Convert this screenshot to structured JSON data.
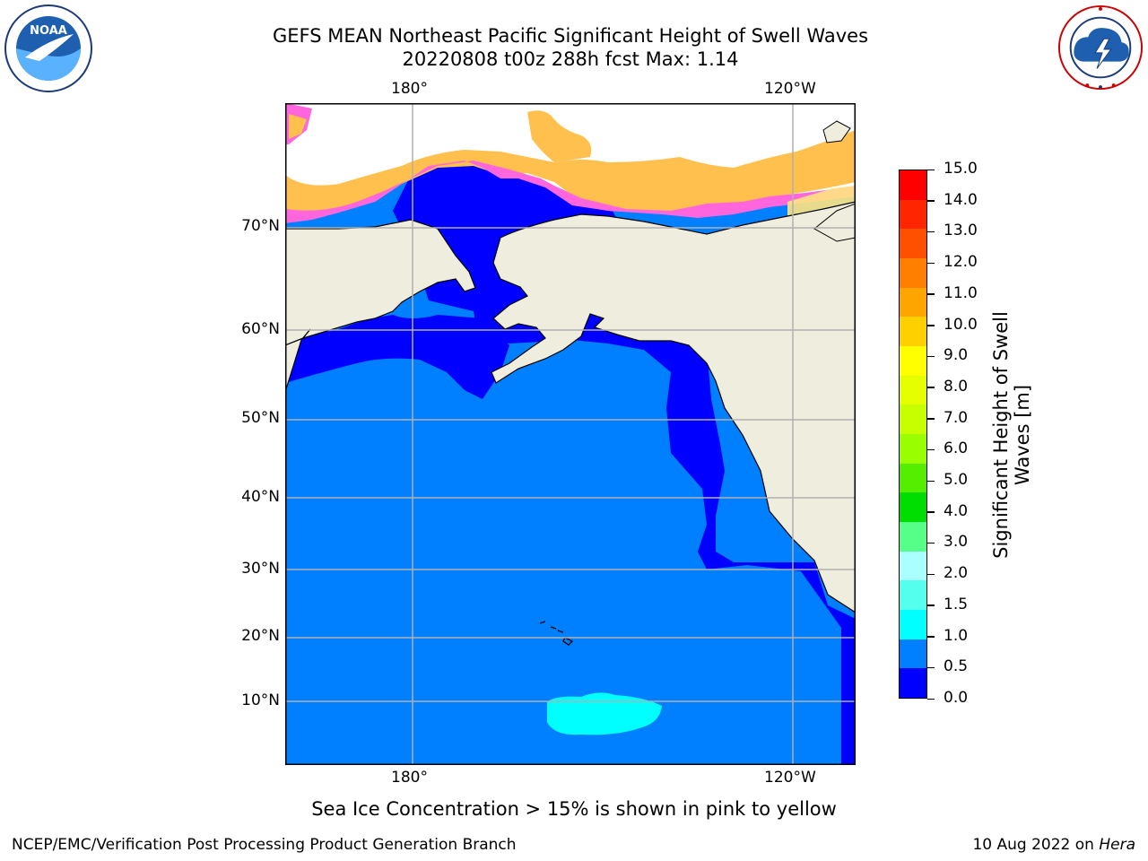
{
  "header": {
    "title_line1": "GEFS MEAN Northeast Pacific Significant Height of Swell Waves",
    "title_line2": "20220808 t00z 288h fcst   Max: 1.14"
  },
  "logos": {
    "left": {
      "name": "noaa-logo",
      "text": "NOAA",
      "ring_text": "NATIONAL OCEANIC AND ATMOSPHERIC ADMINISTRATION · U.S. DEPARTMENT OF COMMERCE"
    },
    "right": {
      "name": "nws-logo",
      "ring_text": "NATIONAL WEATHER SERVICE"
    }
  },
  "map": {
    "lon_labels_top": [
      "180°",
      "120°W"
    ],
    "lon_labels_bottom": [
      "180°",
      "120°W"
    ],
    "lat_labels": [
      "70°N",
      "60°N",
      "50°N",
      "40°N",
      "30°N",
      "20°N",
      "10°N"
    ],
    "colors": {
      "land": "#efedde",
      "ocean_low": "#0000ff",
      "ocean_mid": "#007fff",
      "swell_high": "#00ffff",
      "ice_pink": "#ff66dd",
      "ice_orange": "#ffc04d",
      "ice_yellow": "#ffe680",
      "grid": "#b0b0b0"
    }
  },
  "colorbar": {
    "ticks": [
      "15.0",
      "14.0",
      "13.0",
      "12.0",
      "11.0",
      "10.0",
      "9.0",
      "8.0",
      "7.0",
      "6.0",
      "5.0",
      "4.0",
      "3.0",
      "2.0",
      "1.5",
      "1.0",
      "0.5",
      "0.0"
    ],
    "colors_top_to_bottom": [
      "#ff0000",
      "#ff2500",
      "#ff5000",
      "#ff7f00",
      "#ffa500",
      "#ffd000",
      "#ffff00",
      "#e5ff00",
      "#c8ff00",
      "#99ff00",
      "#55ee00",
      "#00dd00",
      "#55ff88",
      "#aaffff",
      "#55ffee",
      "#00ffff",
      "#0080ff",
      "#0000ff"
    ],
    "label_line1": "Significant Height of Swell",
    "label_line2": "Waves [m]"
  },
  "caption": "Sea Ice Concentration > 15% is shown in pink to yellow",
  "footer": {
    "left": "NCEP/EMC/Verification Post Processing Product Generation Branch",
    "right_prefix": "10 Aug 2022 on ",
    "right_host": "Hera"
  }
}
